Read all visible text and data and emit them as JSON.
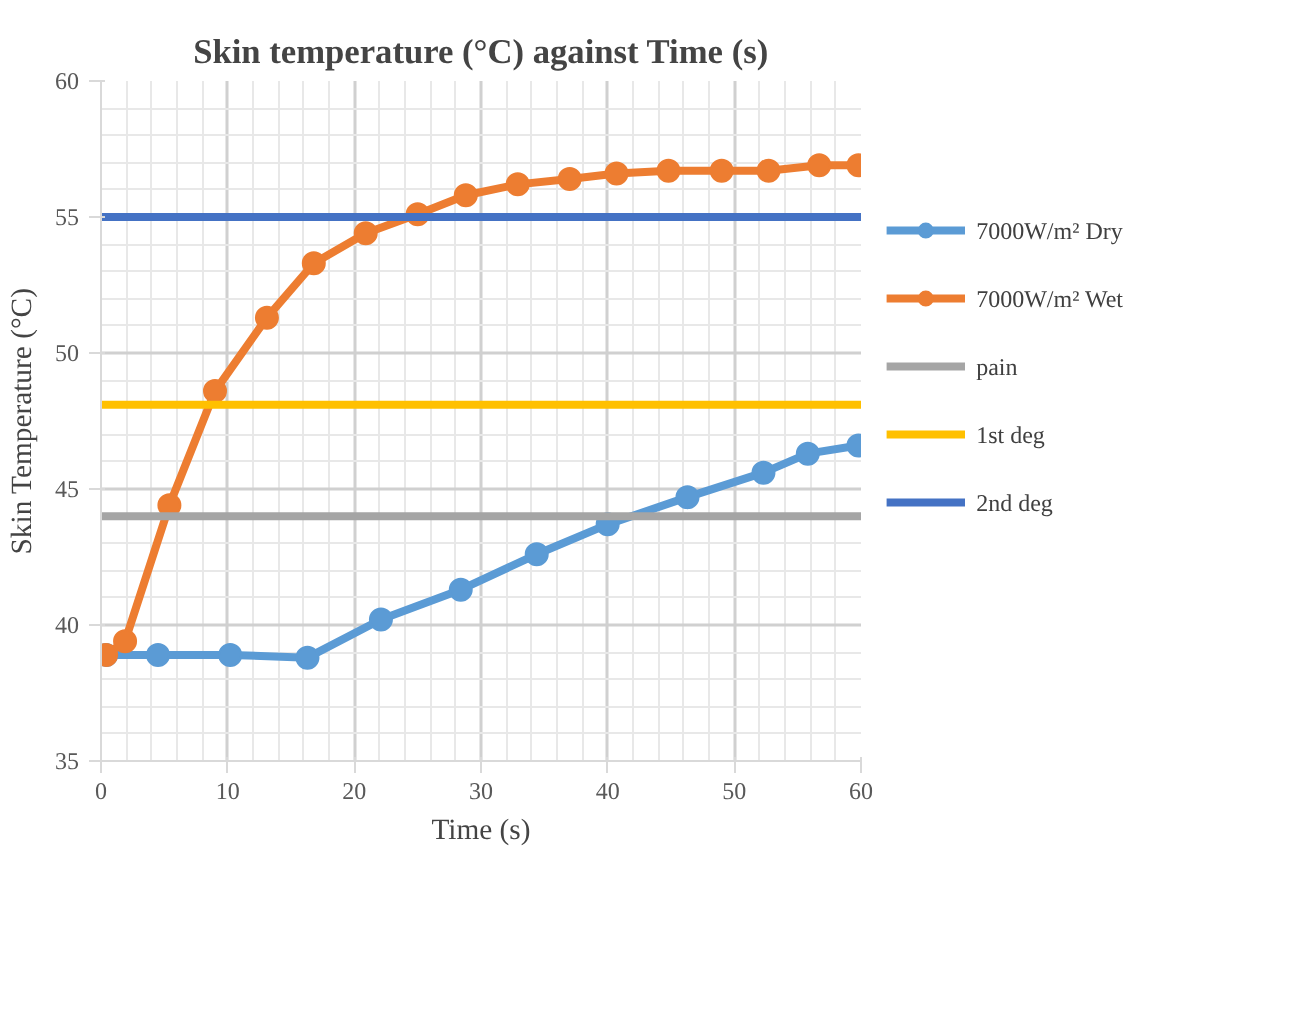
{
  "chart_data": {
    "type": "line",
    "title": "Skin temperature (°C) against Time (s)",
    "xlabel": "Time (s)",
    "ylabel": "Skin Temperature (°C)",
    "xlim": [
      0,
      60
    ],
    "xticks": [
      0,
      10,
      20,
      30,
      40,
      50,
      60
    ],
    "ylim": [
      35,
      60
    ],
    "yticks": [
      35,
      40,
      45,
      50,
      55,
      60
    ],
    "grid": true,
    "legend": "right",
    "series": [
      {
        "name": "7000W/m² Dry",
        "color": "#5b9bd5",
        "marker": "circle",
        "x": [
          0.4,
          4.5,
          10.2,
          16.3,
          22.1,
          28.4,
          34.4,
          40.0,
          46.3,
          52.3,
          55.8,
          59.8
        ],
        "values": [
          38.9,
          38.9,
          38.9,
          38.8,
          40.2,
          41.3,
          42.6,
          43.7,
          44.7,
          45.6,
          46.3,
          46.6
        ]
      },
      {
        "name": "7000W/m² Wet",
        "color": "#ed7d31",
        "marker": "circle",
        "x": [
          0.4,
          1.9,
          5.4,
          9.0,
          13.1,
          16.8,
          20.9,
          25.0,
          28.8,
          32.9,
          37.0,
          40.7,
          44.8,
          49.0,
          52.7,
          56.7,
          59.8
        ],
        "values": [
          38.9,
          39.4,
          44.4,
          48.6,
          51.3,
          53.3,
          54.4,
          55.1,
          55.8,
          56.2,
          56.4,
          56.6,
          56.7,
          56.7,
          56.7,
          56.9,
          56.9
        ]
      },
      {
        "name": "pain",
        "color": "#a5a5a5",
        "marker": "none",
        "x": [
          0,
          60
        ],
        "values": [
          44,
          44
        ]
      },
      {
        "name": "1st deg",
        "color": "#ffc000",
        "marker": "none",
        "x": [
          0,
          60
        ],
        "values": [
          48.1,
          48.1
        ]
      },
      {
        "name": "2nd deg",
        "color": "#4472c4",
        "marker": "none",
        "x": [
          0,
          60
        ],
        "values": [
          55,
          55
        ]
      }
    ]
  }
}
